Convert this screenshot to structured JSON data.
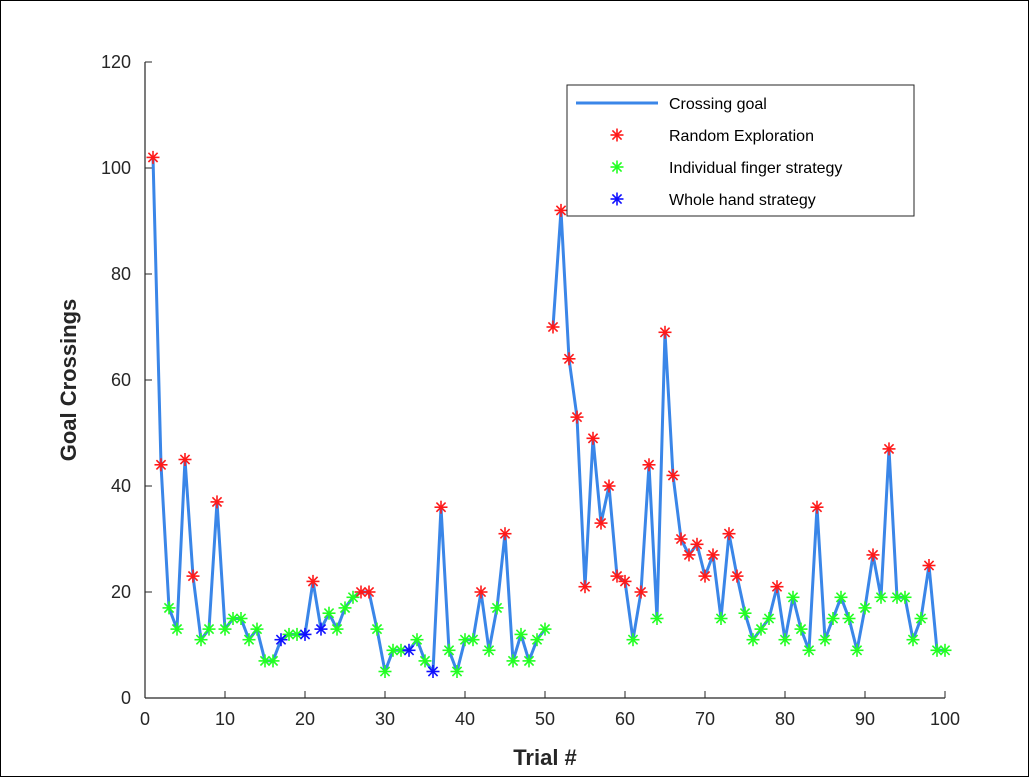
{
  "chart_data": {
    "type": "line",
    "xlabel": "Trial #",
    "ylabel": "Goal Crossings",
    "xlim": [
      0,
      100
    ],
    "ylim": [
      0,
      120
    ],
    "xticks": [
      "0",
      "10",
      "20",
      "30",
      "40",
      "50",
      "60",
      "70",
      "80",
      "90",
      "100"
    ],
    "yticks": [
      "0",
      "20",
      "40",
      "60",
      "80",
      "100",
      "120"
    ],
    "legend_position": "top-right",
    "colors": {
      "line": "#3a86e8",
      "random": "#ff1a1a",
      "individual": "#22ff22",
      "whole": "#1010ff"
    },
    "legend": [
      {
        "label": "Crossing goal",
        "kind": "line",
        "color_key": "line"
      },
      {
        "label": "Random Exploration",
        "kind": "marker",
        "color_key": "random"
      },
      {
        "label": "Individual finger strategy",
        "kind": "marker",
        "color_key": "individual"
      },
      {
        "label": "Whole hand strategy",
        "kind": "marker",
        "color_key": "whole"
      }
    ],
    "series": [
      {
        "name": "Crossing goal",
        "segment": 1,
        "x": [
          1,
          2,
          3,
          4,
          5,
          6,
          7,
          8,
          9,
          10,
          11,
          12,
          13,
          14,
          15,
          16,
          17,
          18,
          19,
          20,
          21,
          22,
          23,
          24,
          25,
          26,
          27,
          28,
          29,
          30,
          31,
          32,
          33,
          34,
          35,
          36,
          37,
          38,
          39,
          40,
          41,
          42,
          43,
          44,
          45,
          46,
          47,
          48,
          49,
          50
        ],
        "y": [
          102,
          44,
          17,
          13,
          45,
          23,
          11,
          13,
          37,
          13,
          15,
          15,
          11,
          13,
          7,
          7,
          11,
          12,
          12,
          12,
          22,
          13,
          16,
          13,
          17,
          19,
          20,
          20,
          13,
          5,
          9,
          9,
          9,
          11,
          7,
          5,
          36,
          9,
          5,
          11,
          11,
          20,
          9,
          17,
          31,
          7,
          12,
          7,
          11,
          13
        ]
      },
      {
        "name": "Crossing goal",
        "segment": 2,
        "x": [
          51,
          52,
          53,
          54,
          55,
          56,
          57,
          58,
          59,
          60,
          61,
          62,
          63,
          64,
          65,
          66,
          67,
          68,
          69,
          70,
          71,
          72,
          73,
          74,
          75,
          76,
          77,
          78,
          79,
          80,
          81,
          82,
          83,
          84,
          85,
          86,
          87,
          88,
          89,
          90,
          91,
          92,
          93,
          94,
          95,
          96,
          97,
          98,
          99,
          100
        ],
        "y": [
          70,
          92,
          64,
          53,
          21,
          49,
          33,
          40,
          23,
          22,
          11,
          20,
          44,
          15,
          69,
          42,
          30,
          27,
          29,
          23,
          27,
          15,
          31,
          23,
          16,
          11,
          13,
          15,
          21,
          11,
          19,
          13,
          9,
          36,
          11,
          15,
          19,
          15,
          9,
          17,
          27,
          19,
          47,
          19,
          19,
          11,
          15,
          25,
          9,
          9
        ]
      }
    ],
    "markers": {
      "random": [
        [
          1,
          102
        ],
        [
          2,
          44
        ],
        [
          5,
          45
        ],
        [
          6,
          23
        ],
        [
          9,
          37
        ],
        [
          21,
          22
        ],
        [
          27,
          20
        ],
        [
          28,
          20
        ],
        [
          37,
          36
        ],
        [
          42,
          20
        ],
        [
          45,
          31
        ],
        [
          51,
          70
        ],
        [
          52,
          92
        ],
        [
          53,
          64
        ],
        [
          54,
          53
        ],
        [
          55,
          21
        ],
        [
          56,
          49
        ],
        [
          57,
          33
        ],
        [
          58,
          40
        ],
        [
          59,
          23
        ],
        [
          60,
          22
        ],
        [
          62,
          20
        ],
        [
          63,
          44
        ],
        [
          65,
          69
        ],
        [
          66,
          42
        ],
        [
          67,
          30
        ],
        [
          68,
          27
        ],
        [
          69,
          29
        ],
        [
          70,
          23
        ],
        [
          71,
          27
        ],
        [
          73,
          31
        ],
        [
          74,
          23
        ],
        [
          79,
          21
        ],
        [
          84,
          36
        ],
        [
          91,
          27
        ],
        [
          93,
          47
        ],
        [
          98,
          25
        ]
      ],
      "individual": [
        [
          3,
          17
        ],
        [
          4,
          13
        ],
        [
          7,
          11
        ],
        [
          8,
          13
        ],
        [
          10,
          13
        ],
        [
          11,
          15
        ],
        [
          12,
          15
        ],
        [
          13,
          11
        ],
        [
          14,
          13
        ],
        [
          15,
          7
        ],
        [
          16,
          7
        ],
        [
          18,
          12
        ],
        [
          19,
          12
        ],
        [
          23,
          16
        ],
        [
          24,
          13
        ],
        [
          25,
          17
        ],
        [
          26,
          19
        ],
        [
          29,
          13
        ],
        [
          30,
          5
        ],
        [
          31,
          9
        ],
        [
          32,
          9
        ],
        [
          34,
          11
        ],
        [
          35,
          7
        ],
        [
          38,
          9
        ],
        [
          39,
          5
        ],
        [
          40,
          11
        ],
        [
          41,
          11
        ],
        [
          43,
          9
        ],
        [
          44,
          17
        ],
        [
          46,
          7
        ],
        [
          47,
          12
        ],
        [
          48,
          7
        ],
        [
          49,
          11
        ],
        [
          50,
          13
        ],
        [
          61,
          11
        ],
        [
          64,
          15
        ],
        [
          72,
          15
        ],
        [
          75,
          16
        ],
        [
          76,
          11
        ],
        [
          77,
          13
        ],
        [
          78,
          15
        ],
        [
          80,
          11
        ],
        [
          81,
          19
        ],
        [
          82,
          13
        ],
        [
          83,
          9
        ],
        [
          85,
          11
        ],
        [
          86,
          15
        ],
        [
          87,
          19
        ],
        [
          88,
          15
        ],
        [
          89,
          9
        ],
        [
          90,
          17
        ],
        [
          92,
          19
        ],
        [
          94,
          19
        ],
        [
          95,
          19
        ],
        [
          96,
          11
        ],
        [
          97,
          15
        ],
        [
          99,
          9
        ],
        [
          100,
          9
        ]
      ],
      "whole": [
        [
          17,
          11
        ],
        [
          20,
          12
        ],
        [
          22,
          13
        ],
        [
          33,
          9
        ],
        [
          36,
          5
        ]
      ]
    }
  }
}
